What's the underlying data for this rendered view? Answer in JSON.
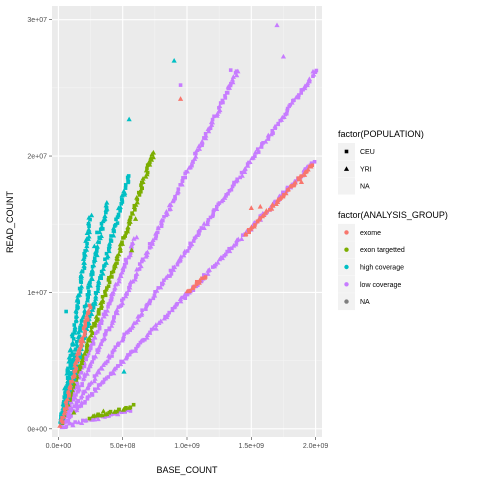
{
  "chart_data": {
    "type": "scatter",
    "xlabel": "BASE_COUNT",
    "ylabel": "READ_COUNT",
    "xlim": [
      -50000000.0,
      2050000000.0
    ],
    "ylim": [
      -600000.0,
      31000000.0
    ],
    "x_ticks": [
      {
        "value": 0,
        "label": "0.0e+00"
      },
      {
        "value": 500000000,
        "label": "5.0e+08"
      },
      {
        "value": 1000000000,
        "label": "1.0e+09"
      },
      {
        "value": 1500000000,
        "label": "1.5e+09"
      },
      {
        "value": 2000000000,
        "label": "2.0e+09"
      }
    ],
    "y_ticks": [
      {
        "value": 0,
        "label": "0e+00"
      },
      {
        "value": 10000000,
        "label": "1e+07"
      },
      {
        "value": 20000000,
        "label": "2e+07"
      },
      {
        "value": 30000000,
        "label": "3e+07"
      }
    ],
    "grid": true,
    "legend_placement": "right",
    "legends": [
      {
        "title": "factor(POPULATION)",
        "kind": "shape",
        "entries": [
          {
            "label": "CEU",
            "shape": "square"
          },
          {
            "label": "YRI",
            "shape": "triangle"
          },
          {
            "label": "NA",
            "shape": "none"
          }
        ]
      },
      {
        "title": "factor(ANALYSIS_GROUP)",
        "kind": "color",
        "entries": [
          {
            "label": "exome",
            "color": "#F8766D"
          },
          {
            "label": "exon targetted",
            "color": "#7CAE00"
          },
          {
            "label": "high coverage",
            "color": "#00BFC4"
          },
          {
            "label": "low coverage",
            "color": "#C77CFF"
          },
          {
            "label": "NA",
            "color": "#7F7F7F"
          }
        ]
      }
    ],
    "series": [
      {
        "group": "low coverage",
        "color": "#C77CFF",
        "lines": [
          {
            "x": [
              20000000,
              2000000000
            ],
            "y": [
              300000,
              26200000
            ]
          },
          {
            "x": [
              20000000,
              1400000000
            ],
            "y": [
              350000,
              26300000
            ]
          },
          {
            "x": [
              20000000,
              1990000000
            ],
            "y": [
              200000,
              19600000
            ]
          },
          {
            "x": [
              20000000,
              600000000
            ],
            "y": [
              500000,
              14000000
            ]
          },
          {
            "x": [
              20000000,
              560000000
            ],
            "y": [
              150000,
              1400000
            ]
          }
        ],
        "points": [
          {
            "x": 1700000000,
            "y": 29600000,
            "shape": "triangle"
          },
          {
            "x": 1340000000,
            "y": 26300000,
            "shape": "square"
          },
          {
            "x": 1330000000,
            "y": 25000000,
            "shape": "triangle"
          },
          {
            "x": 950000000,
            "y": 25200000,
            "shape": "square"
          },
          {
            "x": 1980000000,
            "y": 26200000,
            "shape": "triangle"
          },
          {
            "x": 1750000000,
            "y": 27300000,
            "shape": "triangle"
          }
        ]
      },
      {
        "group": "exon targetted",
        "color": "#7CAE00",
        "lines": [
          {
            "x": [
              20000000,
              740000000
            ],
            "y": [
              500000,
              20300000
            ]
          },
          {
            "x": [
              250000000,
              580000000
            ],
            "y": [
              800000,
              1700000
            ]
          }
        ],
        "points": [
          {
            "x": 710000000,
            "y": 19600000,
            "shape": "triangle"
          },
          {
            "x": 600000000,
            "y": 15400000,
            "shape": "triangle"
          },
          {
            "x": 570000000,
            "y": 13100000,
            "shape": "triangle"
          },
          {
            "x": 120000000,
            "y": 1200000,
            "shape": "triangle"
          },
          {
            "x": 350000000,
            "y": 1300000,
            "shape": "triangle"
          }
        ]
      },
      {
        "group": "high coverage",
        "color": "#00BFC4",
        "lines": [
          {
            "x": [
              20000000,
              550000000
            ],
            "y": [
              500000,
              18600000
            ]
          },
          {
            "x": [
              20000000,
              380000000
            ],
            "y": [
              500000,
              16600000
            ]
          },
          {
            "x": [
              20000000,
              250000000
            ],
            "y": [
              500000,
              15600000
            ]
          },
          {
            "x": [
              20000000,
              120000000
            ],
            "y": [
              500000,
              5500000
            ]
          }
        ],
        "points": [
          {
            "x": 900000000,
            "y": 27000000,
            "shape": "triangle"
          },
          {
            "x": 550000000,
            "y": 22700000,
            "shape": "triangle"
          },
          {
            "x": 280000000,
            "y": 13400000,
            "shape": "triangle"
          },
          {
            "x": 300000000,
            "y": 14400000,
            "shape": "square"
          },
          {
            "x": 510000000,
            "y": 4200000,
            "shape": "triangle"
          },
          {
            "x": 180000000,
            "y": 11200000,
            "shape": "triangle"
          },
          {
            "x": 240000000,
            "y": 10600000,
            "shape": "square"
          },
          {
            "x": 60000000,
            "y": 8600000,
            "shape": "square"
          }
        ]
      },
      {
        "group": "exome",
        "color": "#F8766D",
        "lines": [
          {
            "x": [
              20000000,
              250000000
            ],
            "y": [
              300000,
              9000000
            ]
          },
          {
            "x": [
              1450000000,
              1980000000
            ],
            "y": [
              14200000,
              19400000
            ]
          },
          {
            "x": [
              1000000000,
              1140000000
            ],
            "y": [
              10000000,
              11200000
            ]
          }
        ],
        "points": [
          {
            "x": 950000000,
            "y": 24200000,
            "shape": "triangle"
          },
          {
            "x": 1500000000,
            "y": 16200000,
            "shape": "triangle"
          },
          {
            "x": 1570000000,
            "y": 16300000,
            "shape": "triangle"
          },
          {
            "x": 1890000000,
            "y": 18100000,
            "shape": "triangle"
          }
        ]
      }
    ]
  }
}
